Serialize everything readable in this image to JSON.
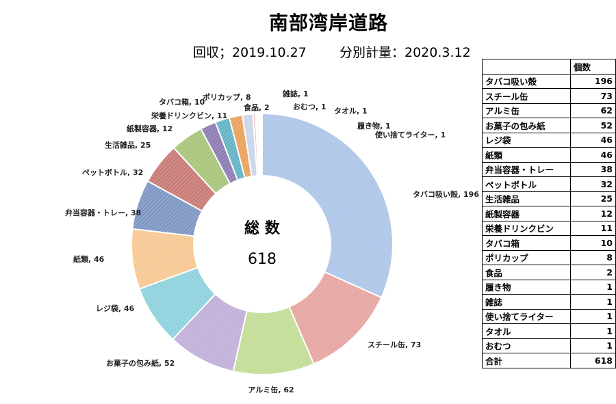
{
  "title": "南部湾岸道路",
  "collection": "回収；2019.10.27",
  "counted": "分別計量：2020.3.12",
  "center": {
    "label": "総 数",
    "value": "618"
  },
  "table": {
    "header_label": "",
    "header_value": "個数",
    "total_label": "合計",
    "total_value": 618
  },
  "chart_data": {
    "type": "pie",
    "donut": true,
    "title": "南部湾岸道路",
    "categories": [
      "タバコ吸い殻",
      "スチール缶",
      "アルミ缶",
      "お菓子の包み紙",
      "レジ袋",
      "紙類",
      "弁当容器・トレー",
      "ペットボトル",
      "生活雑品",
      "紙製容器",
      "栄養ドリンクビン",
      "タバコ箱",
      "ポリカップ",
      "食品",
      "履き物",
      "雑誌",
      "使い捨てライター",
      "タオル",
      "おむつ"
    ],
    "values": [
      196,
      73,
      62,
      52,
      46,
      46,
      38,
      32,
      25,
      12,
      11,
      10,
      8,
      2,
      1,
      1,
      1,
      1,
      1
    ],
    "slice_labels": [
      "タバコ吸い殻, 196",
      "スチール缶, 73",
      "アルミ缶, 62",
      "お菓子の包み紙, 52",
      "レジ袋, 46",
      "紙類, 46",
      "弁当容器・トレー, 38",
      "ペットボトル, 32",
      "生活雑品, 25",
      "紙製容器, 12",
      "栄養ドリンクビン, 11",
      "タバコ箱, 10",
      "ポリカップ, 8",
      "食品, 2",
      "履き物, 1",
      "雑誌, 1",
      "使い捨てライター, 1",
      "タオル, 1",
      "おむつ, 1"
    ],
    "slice_order": [
      0,
      1,
      2,
      3,
      4,
      5,
      6,
      7,
      8,
      9,
      10,
      11,
      12,
      13,
      15,
      16,
      17,
      18,
      14
    ],
    "colors": [
      "#aec6e8",
      "#e6a6a2",
      "#c4dd98",
      "#c1b0d9",
      "#8fd2de",
      "#f7c894",
      "#7f97c3",
      "#c97c78",
      "#a9c57c",
      "#8e7db3",
      "#64b4c6",
      "#e9a35e",
      "#c9d6ec",
      "#f0c6c4",
      "#dde9c8",
      "#d3c9e3",
      "#b7e2ea",
      "#f9dcb9",
      "#aebfdc"
    ],
    "table_rows": [
      {
        "label": "タバコ吸い殻",
        "value": 196
      },
      {
        "label": "スチール缶",
        "value": 73
      },
      {
        "label": "アルミ缶",
        "value": 62
      },
      {
        "label": "お菓子の包み紙",
        "value": 52
      },
      {
        "label": "レジ袋",
        "value": 46
      },
      {
        "label": "紙類",
        "value": 46
      },
      {
        "label": "弁当容器・トレー",
        "value": 38
      },
      {
        "label": "ペットボトル",
        "value": 32
      },
      {
        "label": "生活雑品",
        "value": 25
      },
      {
        "label": "紙製容器",
        "value": 12
      },
      {
        "label": "栄養ドリンクビン",
        "value": 11
      },
      {
        "label": "タバコ箱",
        "value": 10
      },
      {
        "label": "ポリカップ",
        "value": 8
      },
      {
        "label": "食品",
        "value": 2
      },
      {
        "label": "履き物",
        "value": 1
      },
      {
        "label": "雑誌",
        "value": 1
      },
      {
        "label": "使い捨てライター",
        "value": 1
      },
      {
        "label": "タオル",
        "value": 1
      },
      {
        "label": "おむつ",
        "value": 1
      }
    ]
  }
}
